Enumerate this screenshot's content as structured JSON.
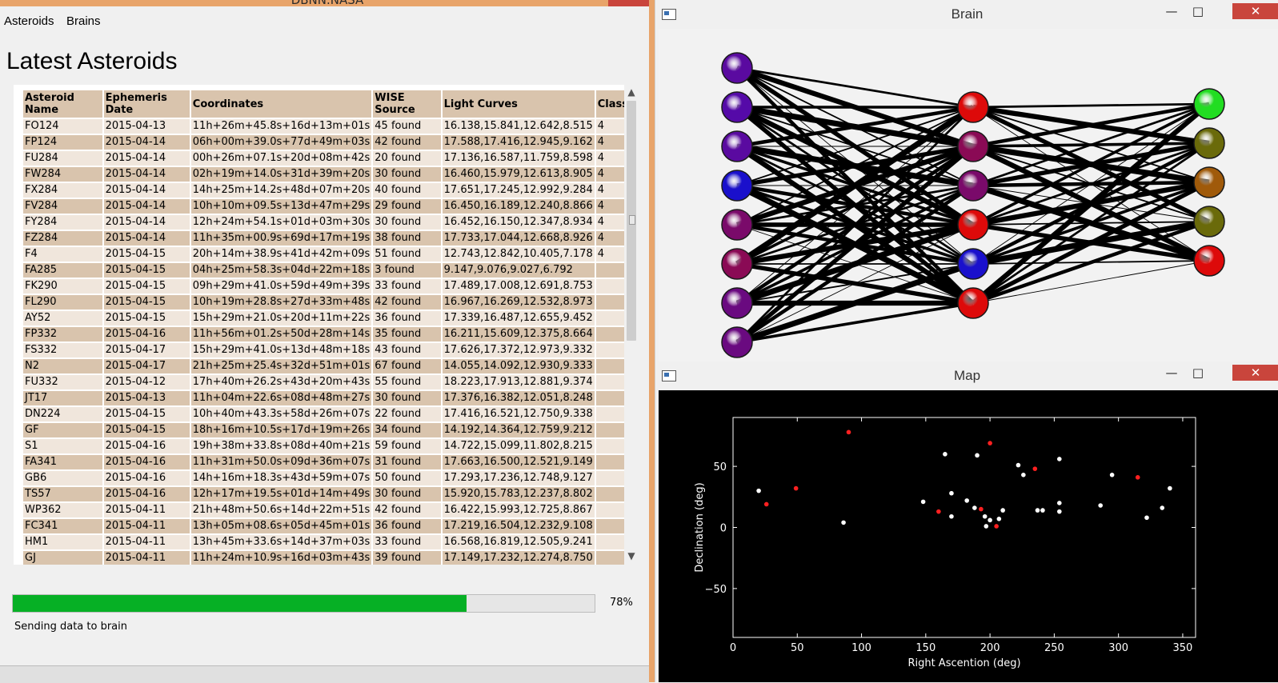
{
  "main_window": {
    "title": "DBNN.NASA",
    "menu": [
      "Asteroids",
      "Brains"
    ],
    "page_title": "Latest Asteroids",
    "table": {
      "headers": [
        {
          "line1": "Asteroid",
          "line2": "Name"
        },
        {
          "line1": "Ephemeris",
          "line2": "Date"
        },
        {
          "line1": "Coordinates",
          "line2": ""
        },
        {
          "line1": "WISE",
          "line2": "Source"
        },
        {
          "line1": "Light Curves",
          "line2": ""
        },
        {
          "line1": "Class",
          "line2": ""
        }
      ],
      "rows": [
        [
          "FO124",
          "2015-04-13",
          "11h+26m+45.8s+16d+13m+01s",
          "45 found",
          "16.138,15.841,12.642,8.515",
          "4"
        ],
        [
          "FP124",
          "2015-04-14",
          "06h+00m+39.0s+77d+49m+03s",
          "42 found",
          "17.588,17.416,12.945,9.162",
          "4"
        ],
        [
          "FU284",
          "2015-04-14",
          "00h+26m+07.1s+20d+08m+42s",
          "20 found",
          "17.136,16.587,11.759,8.598",
          "4"
        ],
        [
          "FW284",
          "2015-04-14",
          "02h+19m+14.0s+31d+39m+20s",
          "30 found",
          "16.460,15.979,12.613,8.905",
          "4"
        ],
        [
          "FX284",
          "2015-04-14",
          "14h+25m+14.2s+48d+07m+20s",
          "40 found",
          "17.651,17.245,12.992,9.284",
          "4"
        ],
        [
          "FV284",
          "2015-04-14",
          "10h+10m+09.5s+13d+47m+29s",
          "29 found",
          "16.450,16.189,12.240,8.866",
          "4"
        ],
        [
          "FY284",
          "2015-04-14",
          "12h+24m+54.1s+01d+03m+30s",
          "30 found",
          "16.452,16.150,12.347,8.934",
          "4"
        ],
        [
          "FZ284",
          "2015-04-14",
          "11h+35m+00.9s+69d+17m+19s",
          "38 found",
          "17.733,17.044,12.668,8.926",
          "4"
        ],
        [
          "F4",
          "2015-04-15",
          "20h+14m+38.9s+41d+42m+09s",
          "51 found",
          "12.743,12.842,10.405,7.178",
          "4"
        ],
        [
          "FA285",
          "2015-04-15",
          "04h+25m+58.3s+04d+22m+18s",
          "3 found",
          "9.147,9.076,9.027,6.792",
          ""
        ],
        [
          "FK290",
          "2015-04-15",
          "09h+29m+41.0s+59d+49m+39s",
          "33 found",
          "17.489,17.008,12.691,8.753",
          ""
        ],
        [
          "FL290",
          "2015-04-15",
          "10h+19m+28.8s+27d+33m+48s",
          "42 found",
          "16.967,16.269,12.532,8.973",
          ""
        ],
        [
          "AY52",
          "2015-04-15",
          "15h+29m+21.0s+20d+11m+22s",
          "36 found",
          "17.339,16.487,12.655,9.452",
          ""
        ],
        [
          "FP332",
          "2015-04-16",
          "11h+56m+01.2s+50d+28m+14s",
          "35 found",
          "16.211,15.609,12.375,8.664",
          ""
        ],
        [
          "FS332",
          "2015-04-17",
          "15h+29m+41.0s+13d+48m+18s",
          "43 found",
          "17.626,17.372,12.973,9.332",
          ""
        ],
        [
          "N2",
          "2015-04-17",
          "21h+25m+25.4s+32d+51m+01s",
          "67 found",
          "14.055,14.092,12.930,9.333",
          ""
        ],
        [
          "FU332",
          "2015-04-12",
          "17h+40m+26.2s+43d+20m+43s",
          "55 found",
          "18.223,17.913,12.881,9.374",
          ""
        ],
        [
          "JT17",
          "2015-04-13",
          "11h+04m+22.6s+08d+48m+27s",
          "30 found",
          "17.376,16.382,12.051,8.248",
          ""
        ],
        [
          "DN224",
          "2015-04-15",
          "10h+40m+43.3s+58d+26m+07s",
          "22 found",
          "17.416,16.521,12.750,9.338",
          ""
        ],
        [
          "GF",
          "2015-04-15",
          "18h+16m+10.5s+17d+19m+26s",
          "34 found",
          "14.192,14.364,12.759,9.212",
          ""
        ],
        [
          "S1",
          "2015-04-16",
          "19h+38m+33.8s+08d+40m+21s",
          "59 found",
          "14.722,15.099,11.802,8.215",
          ""
        ],
        [
          "FA341",
          "2015-04-16",
          "11h+31m+50.0s+09d+36m+07s",
          "31 found",
          "17.663,16.500,12.521,9.149",
          ""
        ],
        [
          "GB6",
          "2015-04-16",
          "14h+16m+18.3s+43d+59m+07s",
          "50 found",
          "17.293,17.236,12.748,9.127",
          ""
        ],
        [
          "TS57",
          "2015-04-16",
          "12h+17m+19.5s+01d+14m+49s",
          "30 found",
          "15.920,15.783,12.237,8.802",
          ""
        ],
        [
          "WP362",
          "2015-04-11",
          "21h+48m+50.6s+14d+22m+51s",
          "42 found",
          "16.422,15.993,12.725,8.867",
          ""
        ],
        [
          "FC341",
          "2015-04-11",
          "13h+05m+08.6s+05d+45m+01s",
          "36 found",
          "17.219,16.504,12.232,9.108",
          ""
        ],
        [
          "HM1",
          "2015-04-11",
          "13h+45m+33.6s+14d+37m+03s",
          "33 found",
          "16.568,16.819,12.505,9.241",
          ""
        ],
        [
          "GJ",
          "2015-04-11",
          "11h+24m+10.9s+16d+03m+43s",
          "39 found",
          "17.149,17.232,12.274,8.750",
          ""
        ]
      ]
    },
    "progress": {
      "value": 78,
      "label": "78%"
    },
    "status": "Sending data to brain"
  },
  "brain_window": {
    "title": "Brain",
    "controls": {
      "minimize": "—",
      "maximize": "□",
      "close": "✕"
    },
    "layers": [
      {
        "nodes": [
          "#5a0aa0",
          "#550aa8",
          "#5a0aa0",
          "#1a10cc",
          "#7a0a6a",
          "#8a0a55",
          "#6a0a80",
          "#6a0a80"
        ]
      },
      {
        "nodes": [
          "#dd0a0a",
          "#8a0a55",
          "#7a0a6a",
          "#dd0a0a",
          "#1a10cc",
          "#dd0a0a"
        ]
      },
      {
        "nodes": [
          "#22dd22",
          "#6a6a0a",
          "#a05a0a",
          "#6a6a0a",
          "#dd0a0a"
        ]
      }
    ]
  },
  "map_window": {
    "title": "Map",
    "controls": {
      "minimize": "—",
      "maximize": "□",
      "close": "✕"
    },
    "chart_data": {
      "type": "scatter",
      "xlabel": "Right Ascention (deg)",
      "ylabel": "Declination (deg)",
      "xlim": [
        0,
        360
      ],
      "ylim": [
        -90,
        90
      ],
      "xticks": [
        0,
        50,
        100,
        150,
        200,
        250,
        300,
        350
      ],
      "yticks": [
        50,
        0,
        -50
      ],
      "series": [
        {
          "color": "#ffffff",
          "points": [
            [
              20,
              30
            ],
            [
              86,
              4
            ],
            [
              148,
              21
            ],
            [
              165,
              60
            ],
            [
              170,
              28
            ],
            [
              170,
              9
            ],
            [
              182,
              22
            ],
            [
              188,
              16
            ],
            [
              190,
              59
            ],
            [
              196,
              9
            ],
            [
              197,
              1
            ],
            [
              200,
              6
            ],
            [
              207,
              7
            ],
            [
              210,
              14
            ],
            [
              222,
              51
            ],
            [
              226,
              43
            ],
            [
              237,
              14
            ],
            [
              241,
              14
            ],
            [
              254,
              56
            ],
            [
              254,
              20
            ],
            [
              254,
              13
            ],
            [
              286,
              18
            ],
            [
              295,
              43
            ],
            [
              322,
              8
            ],
            [
              334,
              16
            ],
            [
              340,
              32
            ]
          ]
        },
        {
          "color": "#ff2020",
          "points": [
            [
              26,
              19
            ],
            [
              49,
              32
            ],
            [
              90,
              78
            ],
            [
              160,
              13
            ],
            [
              193,
              15
            ],
            [
              200,
              69
            ],
            [
              205,
              1
            ],
            [
              235,
              48
            ],
            [
              315,
              41
            ]
          ]
        }
      ]
    }
  }
}
